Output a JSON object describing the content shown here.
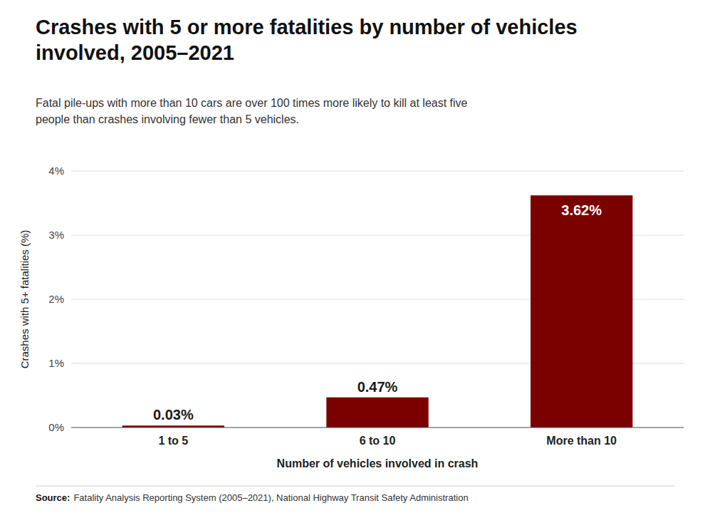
{
  "chart_data": {
    "type": "bar",
    "title": "Crashes with 5 or more fatalities by number of vehicles\ninvolved, 2005–2021",
    "subtitle": "Fatal pile-ups with more than 10 cars are over 100 times more likely to kill at least five\npeople than crashes involving fewer than 5 vehicles.",
    "categories": [
      "1 to 5",
      "6 to 10",
      "More than 10"
    ],
    "values": [
      0.03,
      0.47,
      3.62
    ],
    "value_labels": [
      "0.03%",
      "0.47%",
      "3.62%"
    ],
    "data_labels": true,
    "color": "#7B0000",
    "xlabel": "Number of vehicles involved in crash",
    "ylabel": "Crashes with 5+ fatalities (%)",
    "ylim": [
      0,
      4.0
    ],
    "yticks": [
      {
        "value": 0,
        "label": "0%"
      },
      {
        "value": 1,
        "label": "1%"
      },
      {
        "value": 2,
        "label": "2%"
      },
      {
        "value": 3,
        "label": "3%"
      },
      {
        "value": 4,
        "label": "4%"
      }
    ],
    "grid": true,
    "source_label": "Source:",
    "source": "Fatality Analysis Reporting System (2005–2021), National Highway Transit Safety Administration"
  }
}
